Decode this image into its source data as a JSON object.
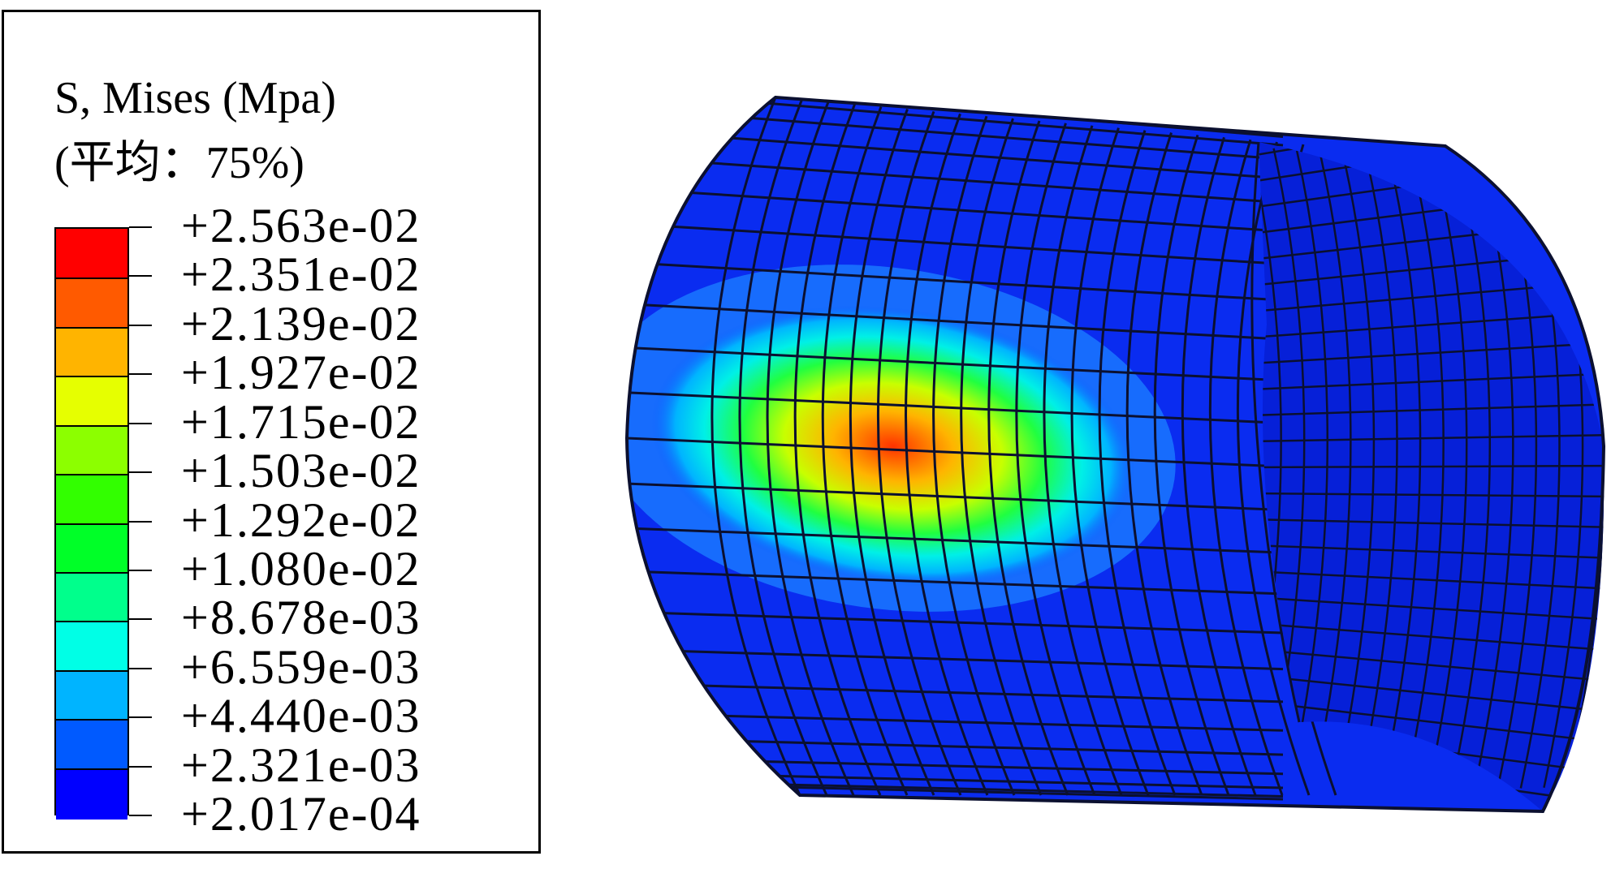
{
  "legend": {
    "title_line1": "S, Mises (Mpa)",
    "title_line2": "(平均：75%)",
    "levels": [
      {
        "label": "+2.563e-02",
        "color": "#ff0000"
      },
      {
        "label": "+2.351e-02",
        "color": "#ff5a00"
      },
      {
        "label": "+2.139e-02",
        "color": "#ffb400"
      },
      {
        "label": "+1.927e-02",
        "color": "#e6ff00"
      },
      {
        "label": "+1.715e-02",
        "color": "#8cff00"
      },
      {
        "label": "+1.503e-02",
        "color": "#32ff00"
      },
      {
        "label": "+1.292e-02",
        "color": "#00ff28"
      },
      {
        "label": "+1.080e-02",
        "color": "#00ff8c"
      },
      {
        "label": "+8.678e-03",
        "color": "#00ffe6"
      },
      {
        "label": "+6.559e-03",
        "color": "#00b4ff"
      },
      {
        "label": "+4.440e-03",
        "color": "#005aff"
      },
      {
        "label": "+2.321e-03",
        "color": "#0000ff"
      },
      {
        "label": "+2.017e-04",
        "color": "#0000ff"
      }
    ]
  },
  "colors": {
    "base": "#0a2cf0",
    "face": "#0620d8",
    "mesh": "#0b1030"
  }
}
